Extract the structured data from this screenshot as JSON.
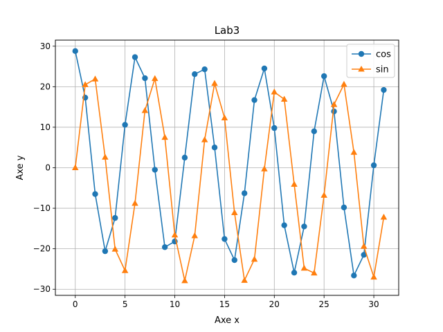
{
  "chart_data": {
    "type": "line",
    "title": "Lab3",
    "xlabel": "Axe x",
    "ylabel": "Axe y",
    "xlim": [
      -2,
      32.5
    ],
    "ylim": [
      -31.5,
      31.5
    ],
    "xticks": [
      0,
      5,
      10,
      15,
      20,
      25,
      30
    ],
    "yticks": [
      -30,
      -20,
      -10,
      0,
      10,
      20,
      30
    ],
    "grid": true,
    "legend_position": "top-right",
    "x": [
      0,
      1,
      2,
      3,
      4,
      5,
      6,
      7,
      8,
      9,
      10,
      11,
      12,
      13,
      14,
      15,
      16,
      17,
      18,
      19,
      20,
      21,
      22,
      23,
      24,
      25,
      26,
      27,
      28,
      29,
      30,
      31
    ],
    "series": [
      {
        "name": "cos",
        "color": "#1f77b4",
        "marker": "circle",
        "values": [
          28.8,
          17.3,
          -6.5,
          -20.6,
          -12.4,
          10.6,
          27.3,
          22.1,
          -0.5,
          -19.6,
          -18.2,
          2.5,
          23.1,
          24.3,
          5.0,
          -17.6,
          -22.8,
          -6.3,
          16.7,
          24.5,
          9.8,
          -14.2,
          -25.9,
          -14.5,
          9.0,
          22.6,
          13.9,
          -9.8,
          -26.6,
          -21.5,
          0.6,
          19.2
        ]
      },
      {
        "name": "sin",
        "color": "#ff7f0e",
        "marker": "triangle",
        "values": [
          0.0,
          20.5,
          21.9,
          2.6,
          -20.1,
          -25.4,
          -8.8,
          14.1,
          22.0,
          7.5,
          -16.6,
          -27.9,
          -16.8,
          6.9,
          20.8,
          12.3,
          -11.1,
          -27.8,
          -22.6,
          -0.3,
          18.7,
          16.9,
          -4.1,
          -24.8,
          -26.0,
          -6.8,
          15.6,
          20.6,
          3.8,
          -19.4,
          -27.0,
          -12.2
        ]
      }
    ]
  }
}
